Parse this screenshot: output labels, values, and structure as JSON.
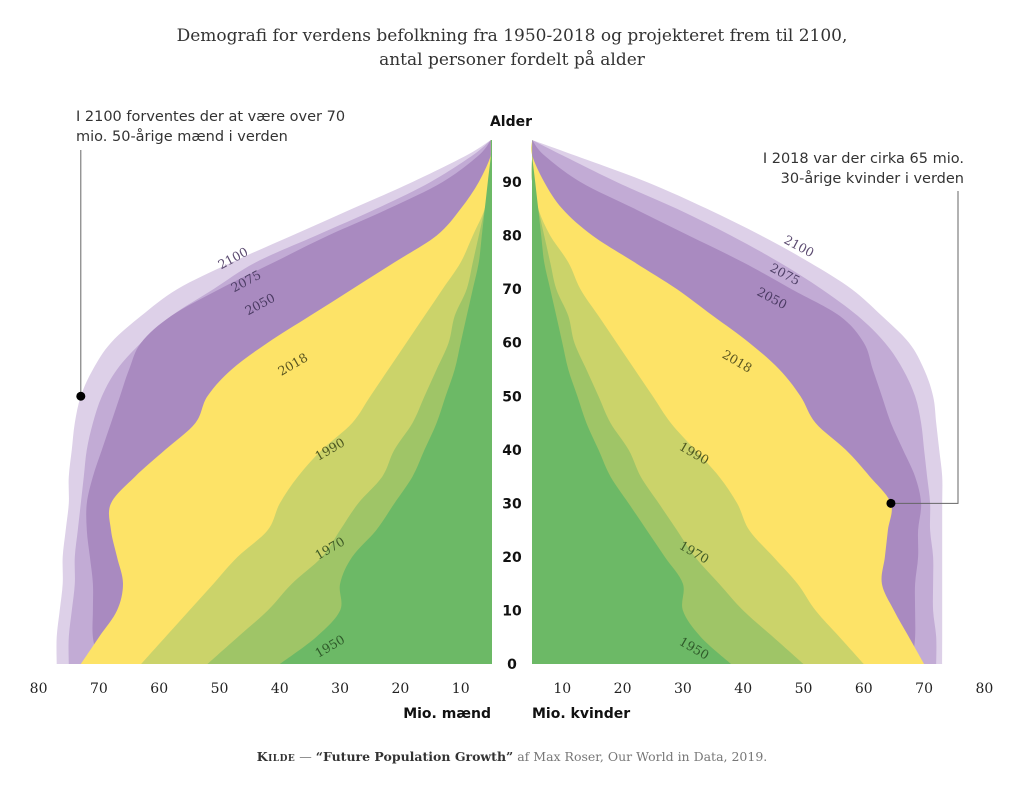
{
  "title": {
    "line1": "Demografi for verdens befolkning fra 1950-2018 og projekteret frem til 2100,",
    "line2": "antal personer fordelt på alder"
  },
  "annotations": {
    "left": {
      "line1": "I 2100 forventes der at være over 70",
      "line2": "mio. 50-årige mænd i verden",
      "point": {
        "side": "men",
        "age": 50,
        "value": 73
      }
    },
    "right": {
      "line1": "I 2018 var der cirka 65 mio.",
      "line2": "30-årige kvinder i verden",
      "point": {
        "side": "women",
        "age": 30,
        "value": 64.5
      }
    }
  },
  "source": {
    "label": "Kilde",
    "dash": "—",
    "title": "“Future Population Growth”",
    "rest": "af Max Roser, Our World in Data, 2019."
  },
  "chart_data": {
    "type": "area",
    "subtype": "population-pyramid",
    "title": "Demografi for verdens befolkning fra 1950-2018 og projekteret frem til 2100, antal personer fordelt på alder",
    "ylabel": "Alder",
    "xlabel_left": "Mio. mænd",
    "xlabel_right": "Mio. kvinder",
    "ylim": [
      0,
      100
    ],
    "xlim": [
      0,
      80
    ],
    "y_ticks": [
      "0",
      "10",
      "20",
      "30",
      "40",
      "50",
      "60",
      "70",
      "80",
      "90"
    ],
    "x_ticks_left": [
      "80",
      "70",
      "60",
      "50",
      "40",
      "30",
      "20",
      "10"
    ],
    "x_ticks_right": [
      "10",
      "20",
      "30",
      "40",
      "50",
      "60",
      "70",
      "80"
    ],
    "grid": false,
    "legend": "inline labels",
    "ages": [
      0,
      5,
      10,
      15,
      20,
      25,
      30,
      35,
      40,
      45,
      50,
      55,
      60,
      65,
      70,
      75,
      80,
      85,
      90,
      95,
      98
    ],
    "series": [
      {
        "name": "2100",
        "color": "#ddd0e8",
        "men": [
          77,
          77,
          76.5,
          76,
          76,
          75.5,
          75,
          75,
          74.5,
          74,
          73,
          71,
          68,
          63,
          57,
          48,
          38,
          28,
          18,
          9,
          5
        ],
        "women": [
          73,
          73,
          73,
          73,
          73,
          73,
          73,
          73,
          72.5,
          72,
          71.5,
          70,
          67.5,
          63,
          58,
          51,
          43,
          34,
          24,
          12,
          5
        ]
      },
      {
        "name": "2075",
        "color": "#c2abd5",
        "men": [
          75,
          75,
          74.5,
          74,
          74,
          73.5,
          73,
          72.5,
          72,
          71,
          69.5,
          67,
          63,
          58,
          51,
          44,
          34,
          24,
          15,
          8,
          5
        ],
        "women": [
          72,
          72,
          71.5,
          71.5,
          71.5,
          71,
          71,
          70.5,
          70,
          69.5,
          68.5,
          66.5,
          63.5,
          59,
          53,
          46,
          38,
          29,
          19,
          10,
          5
        ]
      },
      {
        "name": "2050",
        "color": "#a98ac0",
        "men": [
          70,
          71,
          71,
          71,
          71.5,
          72,
          72,
          71,
          69.5,
          68,
          66.5,
          65,
          63,
          58,
          50,
          41,
          32,
          22,
          13,
          7,
          5
        ],
        "women": [
          68,
          68.5,
          68.5,
          68.5,
          69,
          69,
          69.5,
          68.5,
          66.5,
          64.5,
          63,
          61.5,
          60,
          56,
          48,
          40,
          31,
          22,
          13,
          7,
          5
        ]
      },
      {
        "name": "2018",
        "color": "#fde367",
        "men": [
          73,
          70,
          67,
          66,
          67,
          68,
          68,
          64,
          59,
          54,
          52,
          48,
          42,
          35,
          28,
          21,
          14,
          10,
          7,
          5,
          5
        ],
        "women": [
          70,
          67.5,
          65,
          63,
          63.5,
          64,
          64.5,
          61,
          57,
          52,
          49.5,
          46,
          41,
          35,
          29,
          22,
          15,
          10,
          7,
          5,
          5
        ]
      },
      {
        "name": "1990",
        "color": "#cbd36a",
        "men": [
          63,
          59,
          55,
          51,
          47,
          42,
          40,
          37,
          33,
          28,
          25,
          22,
          19,
          16,
          13,
          10,
          8,
          6,
          5,
          5,
          5
        ],
        "women": [
          60,
          56,
          52,
          49,
          45,
          41,
          39,
          36,
          32,
          28,
          25,
          22,
          19,
          16,
          13,
          11,
          8,
          6,
          5,
          5,
          5
        ]
      },
      {
        "name": "1970",
        "color": "#9fc567",
        "men": [
          52,
          47,
          42,
          38,
          33,
          30,
          27,
          23,
          21,
          18,
          16,
          14,
          12,
          11,
          9,
          8,
          7,
          6,
          5,
          5,
          5
        ],
        "women": [
          50,
          45,
          40,
          36,
          32,
          29,
          26,
          23,
          21,
          18,
          16,
          14,
          12,
          11,
          9,
          8,
          7,
          6,
          5,
          5,
          5
        ]
      },
      {
        "name": "1950",
        "color": "#6cb966",
        "men": [
          40,
          34,
          30,
          30,
          28,
          24,
          21,
          18,
          16,
          14,
          12.5,
          11,
          10,
          9,
          8,
          7,
          6.5,
          6,
          5.5,
          5,
          5
        ],
        "women": [
          38,
          33,
          30,
          30,
          27,
          24,
          21,
          18,
          16,
          14,
          12.5,
          11,
          10,
          9,
          8,
          7,
          6.5,
          6,
          5.5,
          5,
          5
        ]
      }
    ]
  }
}
